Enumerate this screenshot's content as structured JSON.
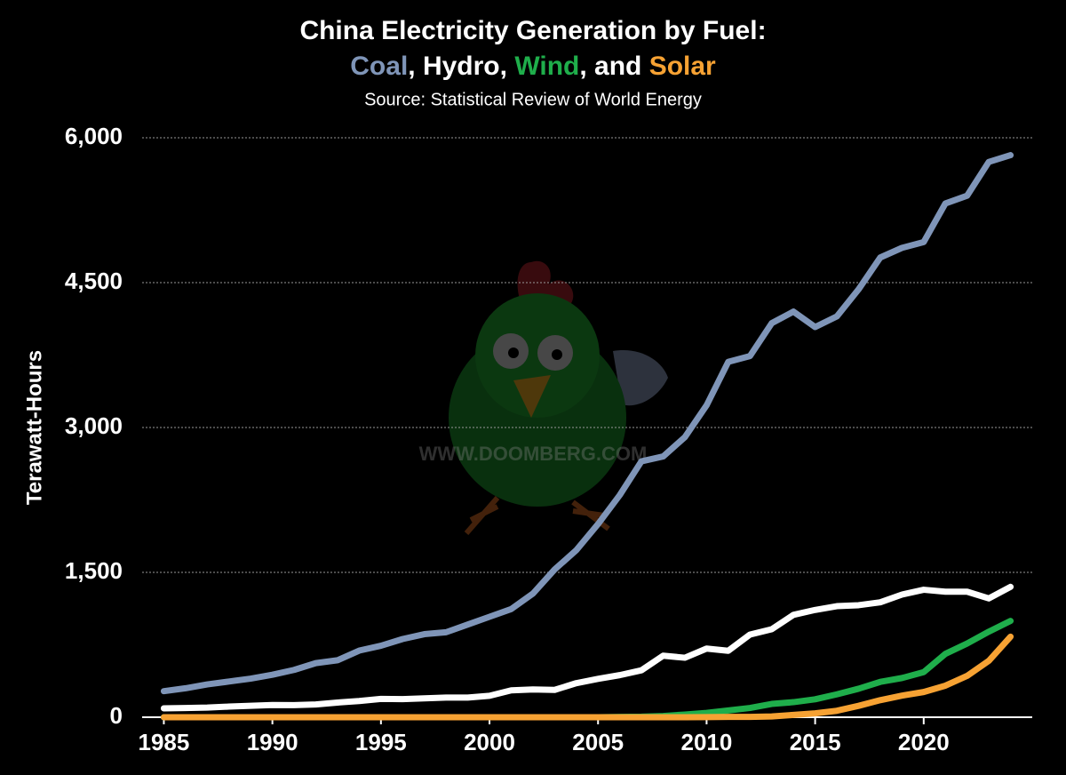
{
  "chart_data": {
    "type": "line",
    "title": "China Electricity Generation by Fuel:",
    "title_joiners": [
      ", ",
      ", ",
      ", and "
    ],
    "subtitle": "Source: Statistical Review of World Energy",
    "y_label": "Terawatt-Hours",
    "watermark": "WWW.DOOMBERG.COM",
    "x": [
      1985,
      1986,
      1987,
      1988,
      1989,
      1990,
      1991,
      1992,
      1993,
      1994,
      1995,
      1996,
      1997,
      1998,
      1999,
      2000,
      2001,
      2002,
      2003,
      2004,
      2005,
      2006,
      2007,
      2008,
      2009,
      2010,
      2011,
      2012,
      2013,
      2014,
      2015,
      2016,
      2017,
      2018,
      2019,
      2020,
      2021,
      2022,
      2023,
      2024
    ],
    "series": [
      {
        "name": "Coal",
        "color": "#7f95b8",
        "values": [
          270,
          300,
          340,
          370,
          400,
          440,
          490,
          560,
          590,
          690,
          740,
          810,
          860,
          880,
          960,
          1040,
          1120,
          1280,
          1530,
          1730,
          2000,
          2300,
          2650,
          2700,
          2900,
          3230,
          3680,
          3740,
          4080,
          4200,
          4040,
          4150,
          4430,
          4760,
          4860,
          4920,
          5320,
          5400,
          5750,
          5820
        ]
      },
      {
        "name": "Hydro",
        "color": "#ffffff",
        "values": [
          92,
          95,
          100,
          110,
          118,
          127,
          125,
          132,
          152,
          168,
          190,
          188,
          196,
          204,
          204,
          222,
          278,
          288,
          283,
          353,
          397,
          436,
          486,
          637,
          616,
          711,
          688,
          856,
          911,
          1060,
          1111,
          1150,
          1160,
          1190,
          1270,
          1320,
          1300,
          1300,
          1230,
          1350
        ]
      },
      {
        "name": "Wind",
        "color": "#1fae4b",
        "values": [
          0,
          0,
          0,
          0,
          0,
          0,
          0,
          0,
          0,
          0,
          0,
          0,
          0,
          0,
          0,
          0,
          0,
          0,
          0,
          0,
          0,
          4,
          6,
          13,
          28,
          45,
          70,
          96,
          138,
          156,
          186,
          237,
          295,
          366,
          406,
          467,
          656,
          763,
          886,
          997
        ]
      },
      {
        "name": "Solar",
        "color": "#f7a233",
        "values": [
          0,
          0,
          0,
          0,
          0,
          0,
          0,
          0,
          0,
          0,
          0,
          0,
          0,
          0,
          0,
          0,
          0,
          0,
          0,
          0,
          0,
          0,
          0,
          0,
          0,
          1,
          3,
          4,
          8,
          24,
          40,
          67,
          118,
          177,
          224,
          261,
          327,
          428,
          584,
          834
        ]
      }
    ],
    "xlim": [
      1984,
      2025
    ],
    "xticks": [
      1985,
      1990,
      1995,
      2000,
      2005,
      2010,
      2015,
      2020
    ],
    "ylim": [
      0,
      6000
    ],
    "yticks": [
      0,
      {
        "value": 1500,
        "label": "1,500"
      },
      {
        "value": 3000,
        "label": "3,000"
      },
      {
        "value": 4500,
        "label": "4,500"
      },
      {
        "value": 6000,
        "label": "6,000"
      }
    ],
    "grid": true
  }
}
